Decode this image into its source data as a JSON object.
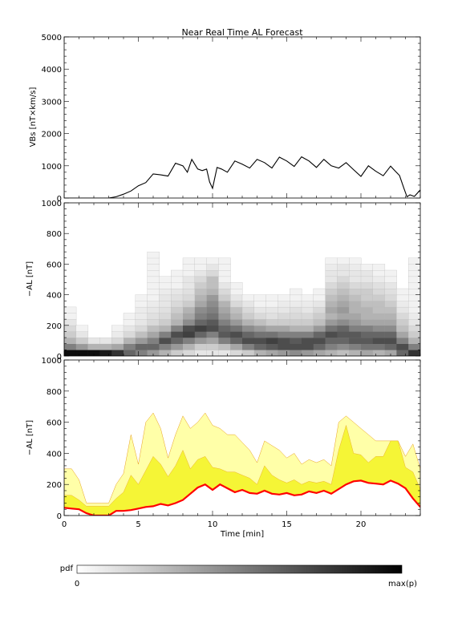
{
  "chart_data": [
    {
      "type": "line",
      "title": "Near Real Time AL Forecast",
      "ylabel": "VBs [nT×km/s]",
      "xlim": [
        0,
        24
      ],
      "ylim": [
        0,
        5000
      ],
      "yticks": [
        "0",
        "1000",
        "2000",
        "3000",
        "4000",
        "5000"
      ],
      "series": [
        {
          "x": [
            0,
            1,
            2,
            3,
            3.5,
            4,
            4.5,
            5,
            5.5,
            6,
            6.5,
            7,
            7.5,
            8,
            8.3,
            8.6,
            9,
            9.3,
            9.6,
            9.8,
            10,
            10.3,
            10.6,
            11,
            11.5,
            12,
            12.5,
            13,
            13.5,
            14,
            14.5,
            15,
            15.5,
            16,
            16.5,
            17,
            17.5,
            18,
            18.5,
            19,
            19.5,
            20,
            20.5,
            21,
            21.5,
            22,
            22.3,
            22.6,
            22.9,
            23.1,
            23.3,
            23.6,
            24
          ],
          "y": [
            0,
            0,
            0,
            0,
            40,
            120,
            220,
            380,
            480,
            600,
            720,
            830,
            930,
            1000,
            950,
            1050,
            900,
            1000,
            750,
            500,
            450,
            800,
            900,
            950,
            1000,
            1050,
            1080,
            1050,
            1100,
            1080,
            1120,
            1150,
            1130,
            1130,
            1150,
            1100,
            1050,
            1000,
            1080,
            950,
            880,
            820,
            850,
            830,
            840,
            840,
            840,
            700,
            300,
            40,
            100,
            50,
            250
          ],
          "color": "#000000"
        }
      ]
    },
    {
      "type": "heatmap",
      "ylabel": "−AL [nT]",
      "xlim": [
        0,
        24
      ],
      "ylim": [
        0,
        1000
      ],
      "yticks": [
        "0",
        "200",
        "400",
        "600",
        "800",
        "1000"
      ],
      "colorscale": [
        "#ffffff",
        "#000000"
      ],
      "x_centers": [
        0.4,
        1.2,
        2.0,
        2.8,
        3.6,
        4.4,
        5.2,
        6.0,
        6.8,
        7.6,
        8.4,
        9.2,
        10.0,
        10.8,
        11.6,
        12.4,
        13.2,
        14.0,
        14.8,
        15.6,
        16.4,
        17.2,
        18.0,
        18.8,
        19.6,
        20.4,
        21.2,
        22.0,
        22.8,
        23.6
      ],
      "y_centers": [
        20,
        60,
        100,
        140,
        180,
        220,
        260,
        300,
        340,
        380,
        420,
        460,
        500,
        540,
        580,
        620,
        660
      ],
      "density": [
        [
          0.95,
          0.5,
          0.3,
          0.2,
          0.15,
          0.1,
          0.05,
          0.05,
          0,
          0,
          0,
          0,
          0,
          0,
          0,
          0,
          0
        ],
        [
          0.95,
          0.4,
          0.2,
          0.1,
          0.05,
          0,
          0,
          0,
          0,
          0,
          0,
          0,
          0,
          0,
          0,
          0,
          0
        ],
        [
          0.95,
          0.3,
          0.1,
          0,
          0,
          0,
          0,
          0,
          0,
          0,
          0,
          0,
          0,
          0,
          0,
          0,
          0
        ],
        [
          0.9,
          0.3,
          0.1,
          0,
          0,
          0,
          0,
          0,
          0,
          0,
          0,
          0,
          0,
          0,
          0,
          0,
          0
        ],
        [
          0.8,
          0.35,
          0.15,
          0.08,
          0.05,
          0,
          0,
          0,
          0,
          0,
          0,
          0,
          0,
          0,
          0,
          0,
          0
        ],
        [
          0.6,
          0.5,
          0.3,
          0.15,
          0.1,
          0.05,
          0.05,
          0,
          0,
          0,
          0,
          0,
          0,
          0,
          0,
          0,
          0
        ],
        [
          0.5,
          0.6,
          0.4,
          0.25,
          0.15,
          0.1,
          0.08,
          0.08,
          0.05,
          0.05,
          0,
          0,
          0,
          0,
          0,
          0,
          0
        ],
        [
          0.4,
          0.6,
          0.5,
          0.35,
          0.25,
          0.15,
          0.12,
          0.1,
          0.08,
          0.05,
          0.05,
          0.05,
          0.05,
          0.05,
          0.05,
          0.05,
          0.05
        ],
        [
          0.3,
          0.5,
          0.7,
          0.5,
          0.3,
          0.2,
          0.15,
          0.12,
          0.1,
          0.1,
          0.08,
          0.05,
          0.05,
          0,
          0,
          0,
          0
        ],
        [
          0.2,
          0.4,
          0.6,
          0.7,
          0.5,
          0.3,
          0.25,
          0.2,
          0.15,
          0.12,
          0.1,
          0.05,
          0.05,
          0.05,
          0,
          0,
          0
        ],
        [
          0.15,
          0.3,
          0.5,
          0.75,
          0.7,
          0.45,
          0.35,
          0.3,
          0.2,
          0.15,
          0.12,
          0.1,
          0.1,
          0.05,
          0.05,
          0.05,
          0
        ],
        [
          0.1,
          0.2,
          0.4,
          0.6,
          0.75,
          0.6,
          0.5,
          0.45,
          0.35,
          0.3,
          0.25,
          0.2,
          0.15,
          0.1,
          0.05,
          0.05,
          0
        ],
        [
          0.1,
          0.2,
          0.35,
          0.5,
          0.7,
          0.65,
          0.55,
          0.5,
          0.45,
          0.4,
          0.3,
          0.25,
          0.25,
          0.15,
          0.1,
          0.05,
          0
        ],
        [
          0.1,
          0.25,
          0.5,
          0.65,
          0.6,
          0.5,
          0.4,
          0.35,
          0.3,
          0.2,
          0.15,
          0.1,
          0.05,
          0.05,
          0.05,
          0.05,
          0
        ],
        [
          0.15,
          0.35,
          0.6,
          0.7,
          0.55,
          0.4,
          0.3,
          0.25,
          0.15,
          0.1,
          0.05,
          0.05,
          0,
          0,
          0,
          0,
          0
        ],
        [
          0.2,
          0.5,
          0.7,
          0.6,
          0.45,
          0.3,
          0.2,
          0.15,
          0.1,
          0.05,
          0,
          0,
          0,
          0,
          0,
          0,
          0
        ],
        [
          0.3,
          0.6,
          0.7,
          0.55,
          0.4,
          0.25,
          0.15,
          0.1,
          0.05,
          0.05,
          0,
          0,
          0,
          0,
          0,
          0,
          0
        ],
        [
          0.35,
          0.65,
          0.75,
          0.55,
          0.35,
          0.2,
          0.12,
          0.1,
          0.05,
          0.05,
          0,
          0,
          0,
          0,
          0,
          0,
          0
        ],
        [
          0.4,
          0.7,
          0.7,
          0.5,
          0.35,
          0.2,
          0.15,
          0.1,
          0.08,
          0.05,
          0,
          0,
          0,
          0,
          0,
          0,
          0
        ],
        [
          0.45,
          0.7,
          0.65,
          0.5,
          0.3,
          0.2,
          0.15,
          0.12,
          0.08,
          0.05,
          0.05,
          0,
          0,
          0,
          0,
          0,
          0
        ],
        [
          0.4,
          0.7,
          0.7,
          0.5,
          0.3,
          0.2,
          0.15,
          0.1,
          0.08,
          0.05,
          0,
          0,
          0,
          0,
          0,
          0,
          0
        ],
        [
          0.35,
          0.6,
          0.7,
          0.6,
          0.4,
          0.25,
          0.2,
          0.15,
          0.1,
          0.05,
          0.05,
          0,
          0,
          0,
          0,
          0,
          0
        ],
        [
          0.3,
          0.5,
          0.6,
          0.7,
          0.55,
          0.4,
          0.3,
          0.35,
          0.3,
          0.25,
          0.2,
          0.15,
          0.1,
          0.1,
          0.08,
          0.05,
          0
        ],
        [
          0.25,
          0.45,
          0.6,
          0.65,
          0.6,
          0.45,
          0.35,
          0.4,
          0.35,
          0.3,
          0.25,
          0.2,
          0.15,
          0.1,
          0.1,
          0.05,
          0
        ],
        [
          0.3,
          0.5,
          0.65,
          0.65,
          0.5,
          0.4,
          0.35,
          0.3,
          0.3,
          0.25,
          0.2,
          0.15,
          0.1,
          0.1,
          0.08,
          0.05,
          0
        ],
        [
          0.35,
          0.55,
          0.65,
          0.6,
          0.5,
          0.35,
          0.3,
          0.3,
          0.25,
          0.2,
          0.2,
          0.15,
          0.1,
          0.1,
          0.05,
          0,
          0
        ],
        [
          0.3,
          0.55,
          0.7,
          0.6,
          0.45,
          0.35,
          0.3,
          0.25,
          0.25,
          0.2,
          0.15,
          0.12,
          0.08,
          0.05,
          0.05,
          0,
          0
        ],
        [
          0.35,
          0.6,
          0.7,
          0.6,
          0.45,
          0.35,
          0.3,
          0.25,
          0.2,
          0.15,
          0.12,
          0.1,
          0.05,
          0.05,
          0,
          0,
          0
        ],
        [
          0.6,
          0.7,
          0.5,
          0.35,
          0.25,
          0.2,
          0.15,
          0.1,
          0.08,
          0.05,
          0.05,
          0,
          0,
          0,
          0,
          0,
          0
        ],
        [
          0.8,
          0.5,
          0.3,
          0.2,
          0.15,
          0.1,
          0.08,
          0.05,
          0.05,
          0.05,
          0.05,
          0.05,
          0.05,
          0.05,
          0.05,
          0.05,
          0
        ]
      ]
    },
    {
      "type": "area",
      "ylabel": "−AL [nT]",
      "xlabel": "Time [min]",
      "xlim": [
        0,
        24
      ],
      "ylim": [
        0,
        1000
      ],
      "yticks": [
        "0",
        "200",
        "400",
        "600",
        "800",
        "1000"
      ],
      "xticks": [
        "0",
        "5",
        "10",
        "15",
        "20"
      ],
      "x": [
        0,
        0.5,
        1,
        1.5,
        2,
        2.5,
        3,
        3.5,
        4,
        4.5,
        5,
        5.5,
        6,
        6.5,
        7,
        7.5,
        8,
        8.5,
        9,
        9.5,
        10,
        10.5,
        11,
        11.5,
        12,
        12.5,
        13,
        13.5,
        14,
        14.5,
        15,
        15.5,
        16,
        16.5,
        17,
        17.5,
        18,
        18.5,
        19,
        19.5,
        20,
        20.5,
        21,
        21.5,
        22,
        22.5,
        23,
        23.5,
        24
      ],
      "series": [
        {
          "name": "outer band",
          "color": "#ffffa8",
          "values": [
            300,
            300,
            230,
            80,
            80,
            80,
            80,
            200,
            270,
            520,
            330,
            600,
            660,
            560,
            370,
            520,
            640,
            560,
            600,
            660,
            580,
            560,
            520,
            520,
            470,
            420,
            340,
            480,
            450,
            420,
            370,
            400,
            330,
            360,
            340,
            360,
            320,
            600,
            640,
            600,
            560,
            520,
            480,
            480,
            480,
            480,
            380,
            460,
            300
          ]
        },
        {
          "name": "inner band",
          "color": "#f5f536",
          "values": [
            130,
            130,
            100,
            60,
            60,
            60,
            60,
            110,
            150,
            260,
            200,
            290,
            380,
            330,
            250,
            320,
            420,
            300,
            360,
            380,
            310,
            300,
            280,
            280,
            260,
            240,
            200,
            320,
            260,
            230,
            210,
            230,
            200,
            220,
            210,
            220,
            200,
            420,
            580,
            400,
            390,
            340,
            380,
            380,
            480,
            480,
            310,
            280,
            170
          ]
        },
        {
          "name": "forecast",
          "color": "#ff0000",
          "values": [
            50,
            45,
            40,
            15,
            0,
            0,
            0,
            30,
            30,
            35,
            45,
            55,
            60,
            75,
            65,
            80,
            100,
            140,
            180,
            200,
            165,
            200,
            175,
            150,
            165,
            145,
            140,
            160,
            140,
            135,
            145,
            130,
            135,
            155,
            145,
            160,
            140,
            170,
            200,
            220,
            225,
            210,
            205,
            200,
            225,
            205,
            175,
            110,
            55
          ]
        }
      ]
    }
  ],
  "colorbar": {
    "label": "pdf",
    "min_label": "0",
    "max_label": "max(p)",
    "colors": [
      "#ffffff",
      "#000000"
    ]
  }
}
